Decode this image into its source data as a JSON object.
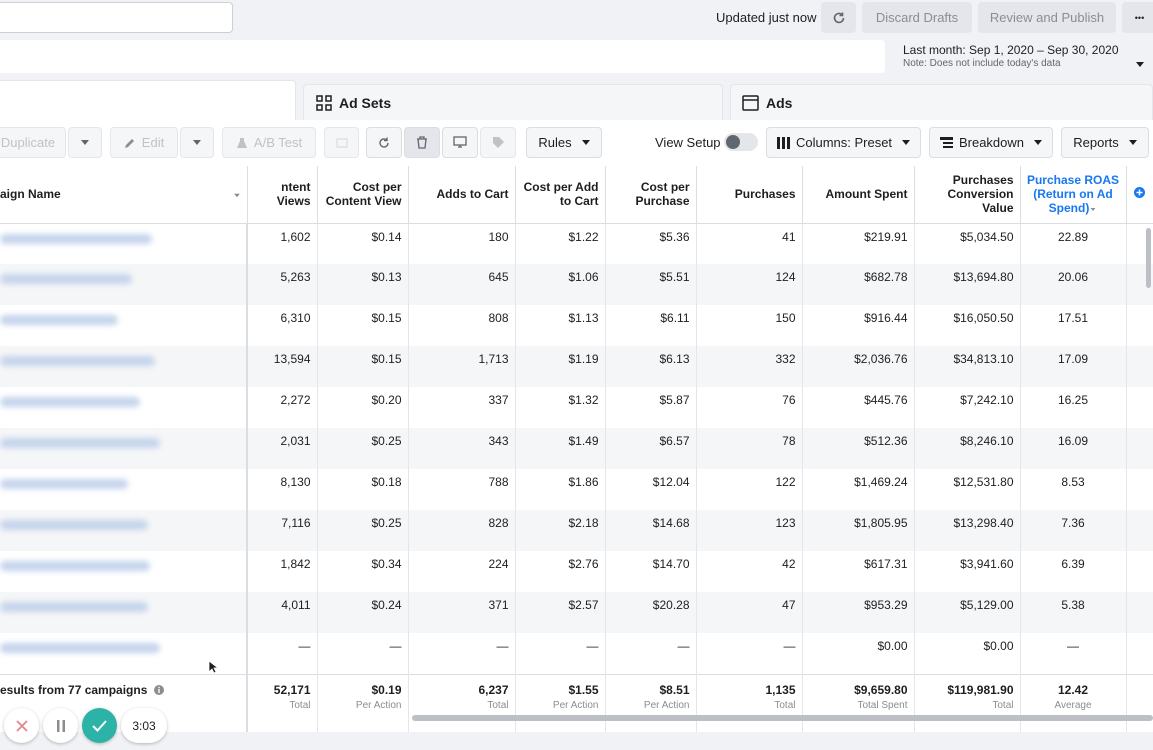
{
  "header": {
    "updated": "Updated just now",
    "discard": "Discard Drafts",
    "review": "Review and Publish",
    "more": "•••"
  },
  "date_range": {
    "label": "Last month: Sep 1, 2020 – Sep 30, 2020",
    "note": "Note: Does not include today's data"
  },
  "tabs": {
    "ad_sets": "Ad Sets",
    "ads": "Ads"
  },
  "toolbar": {
    "duplicate": "Duplicate",
    "edit": "Edit",
    "ab_test": "A/B Test",
    "rules": "Rules",
    "view_setup": "View Setup",
    "columns": "Columns: Preset",
    "breakdown": "Breakdown",
    "reports": "Reports"
  },
  "table": {
    "headers": [
      "aign Name",
      "ntent Views",
      "Cost per Content View",
      "Adds to Cart",
      "Cost per Add to Cart",
      "Cost per Purchase",
      "Purchases",
      "Amount Spent",
      "Purchases Conversion Value",
      "Purchase ROAS (Return on Ad Spend)"
    ],
    "rows": [
      [
        "1,602",
        "$0.14",
        "180",
        "$1.22",
        "$5.36",
        "41",
        "$219.91",
        "$5,034.50",
        "22.89"
      ],
      [
        "5,263",
        "$0.13",
        "645",
        "$1.06",
        "$5.51",
        "124",
        "$682.78",
        "$13,694.80",
        "20.06"
      ],
      [
        "6,310",
        "$0.15",
        "808",
        "$1.13",
        "$6.11",
        "150",
        "$916.44",
        "$16,050.50",
        "17.51"
      ],
      [
        "13,594",
        "$0.15",
        "1,713",
        "$1.19",
        "$6.13",
        "332",
        "$2,036.76",
        "$34,813.10",
        "17.09"
      ],
      [
        "2,272",
        "$0.20",
        "337",
        "$1.32",
        "$5.87",
        "76",
        "$445.76",
        "$7,242.10",
        "16.25"
      ],
      [
        "2,031",
        "$0.25",
        "343",
        "$1.49",
        "$6.57",
        "78",
        "$512.36",
        "$8,246.10",
        "16.09"
      ],
      [
        "8,130",
        "$0.18",
        "788",
        "$1.86",
        "$12.04",
        "122",
        "$1,469.24",
        "$12,531.80",
        "8.53"
      ],
      [
        "7,116",
        "$0.25",
        "828",
        "$2.18",
        "$14.68",
        "123",
        "$1,805.95",
        "$13,298.40",
        "7.36"
      ],
      [
        "1,842",
        "$0.34",
        "224",
        "$2.76",
        "$14.70",
        "42",
        "$617.31",
        "$3,941.60",
        "6.39"
      ],
      [
        "4,011",
        "$0.24",
        "371",
        "$2.57",
        "$20.28",
        "47",
        "$953.29",
        "$5,129.00",
        "5.38"
      ],
      [
        "—",
        "—",
        "—",
        "—",
        "—",
        "—",
        "$0.00",
        "$0.00",
        "—"
      ]
    ],
    "footer_label": "esults from 77 campaigns",
    "footer": [
      {
        "v": "52,171",
        "s": "Total"
      },
      {
        "v": "$0.19",
        "s": "Per Action"
      },
      {
        "v": "6,237",
        "s": "Total"
      },
      {
        "v": "$1.55",
        "s": "Per Action"
      },
      {
        "v": "$8.51",
        "s": "Per Action"
      },
      {
        "v": "1,135",
        "s": "Total"
      },
      {
        "v": "$9,659.80",
        "s": "Total Spent"
      },
      {
        "v": "$119,981.90",
        "s": "Total"
      },
      {
        "v": "12.42",
        "s": "Average"
      }
    ]
  },
  "player": {
    "time": "3:03"
  },
  "colors": {
    "accent": "#1877f2",
    "check": "#2ab3a6"
  }
}
